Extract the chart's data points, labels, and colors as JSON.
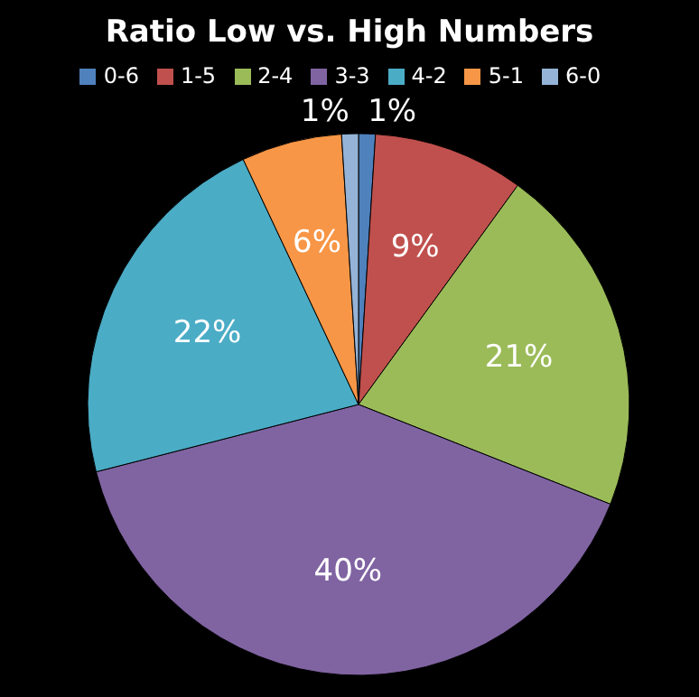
{
  "chart_data": {
    "type": "pie",
    "title": "Ratio Low vs. High Numbers",
    "categories": [
      "0-6",
      "1-5",
      "2-4",
      "3-3",
      "4-2",
      "5-1",
      "6-0"
    ],
    "values": [
      1,
      9,
      21,
      40,
      22,
      6,
      1
    ],
    "value_labels": [
      "1%",
      "9%",
      "21%",
      "40%",
      "22%",
      "6%",
      "1%"
    ],
    "colors": [
      "#4f81bd",
      "#c0504d",
      "#9bbb59",
      "#8064a2",
      "#4bacc6",
      "#f79646",
      "#95b3d7"
    ],
    "legend": "top"
  }
}
